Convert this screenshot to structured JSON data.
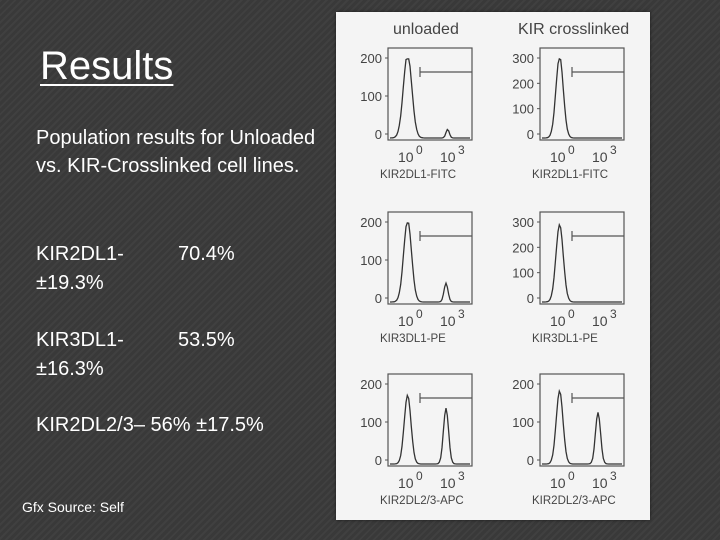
{
  "slide": {
    "title": "Results",
    "intro": "Population results for Unloaded vs. KIR-Crosslinked cell lines.",
    "stats": [
      {
        "name": "KIR2DL1-",
        "value": "70.4%",
        "sd": "±19.3%"
      },
      {
        "name": "KIR3DL1-",
        "value": "53.5%",
        "sd": "±16.3%"
      }
    ],
    "stat3": "KIR2DL2/3– 56% ±17.5%",
    "source": "Gfx Source: Self"
  },
  "figure": {
    "columns": [
      "unloaded",
      "KIR crosslinked"
    ],
    "panels": [
      {
        "xlabel": "KIR2DL1-FITC",
        "ticks_left": [
          "200",
          "100",
          "0"
        ],
        "ticks_right": [
          "300",
          "200",
          "100",
          "0"
        ]
      },
      {
        "xlabel": "KIR3DL1-PE",
        "ticks_left": [
          "200",
          "100",
          "0"
        ],
        "ticks_right": [
          "300",
          "200",
          "100",
          "0"
        ]
      },
      {
        "xlabel": "KIR2DL2/3-APC",
        "ticks_left": [
          "200",
          "100",
          "0"
        ],
        "ticks_right": [
          "200",
          "100",
          "0"
        ]
      }
    ],
    "xticks": [
      "10",
      "0",
      "10",
      "3"
    ]
  }
}
